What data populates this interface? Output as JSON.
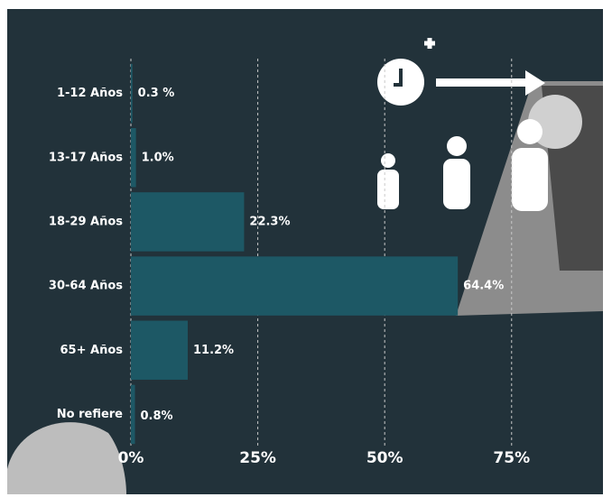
{
  "chart_data": {
    "type": "bar",
    "orientation": "horizontal",
    "categories": [
      "1-12 Años",
      "13-17 Años",
      "18-29 Años",
      "30-64 Años",
      "65+ Años",
      "No refiere"
    ],
    "values": [
      0.3,
      1.0,
      22.3,
      64.4,
      11.2,
      0.8
    ],
    "value_labels": [
      "0.3 %",
      "1.0%",
      "22.3%",
      "64.4%",
      "11.2%",
      "0.8%"
    ],
    "color": "#1d5865",
    "xlim": [
      0,
      93
    ],
    "xticks": [
      {
        "value": 0,
        "label": "0%"
      },
      {
        "value": 25,
        "label": "25%"
      },
      {
        "value": 50,
        "label": "50%"
      },
      {
        "value": 75,
        "label": "75%"
      }
    ],
    "grid": true
  }
}
